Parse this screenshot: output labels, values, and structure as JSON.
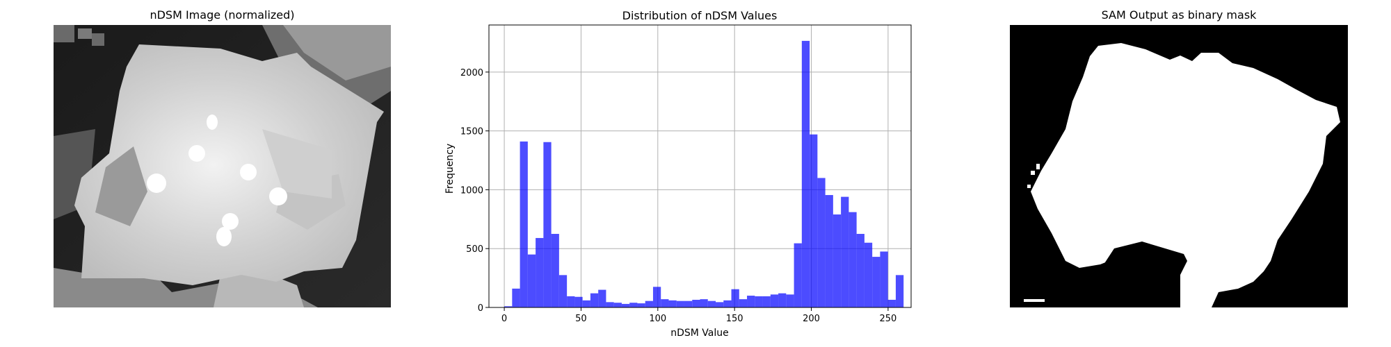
{
  "panels": {
    "left_title": "nDSM Image (normalized)",
    "right_title": "SAM Output as binary mask"
  },
  "chart_data": {
    "type": "bar",
    "title": "Distribution of nDSM Values",
    "xlabel": "nDSM Value",
    "ylabel": "Frequency",
    "xlim": [
      -10,
      265
    ],
    "ylim": [
      0,
      2400
    ],
    "xticks": [
      0,
      50,
      100,
      150,
      200,
      250
    ],
    "yticks": [
      0,
      500,
      1000,
      1500,
      2000
    ],
    "grid": true,
    "bar_color": "#0000ff",
    "bar_alpha": 0.7,
    "bin_width": 5.1,
    "bin_start": 0,
    "values": [
      10,
      160,
      1410,
      450,
      590,
      1405,
      625,
      275,
      95,
      90,
      60,
      120,
      150,
      45,
      40,
      30,
      40,
      35,
      55,
      175,
      70,
      60,
      55,
      55,
      65,
      70,
      55,
      45,
      60,
      155,
      70,
      100,
      95,
      95,
      110,
      120,
      110,
      545,
      2265,
      1470,
      1100,
      955,
      790,
      940,
      810,
      625,
      550,
      430,
      475,
      65,
      275
    ]
  }
}
